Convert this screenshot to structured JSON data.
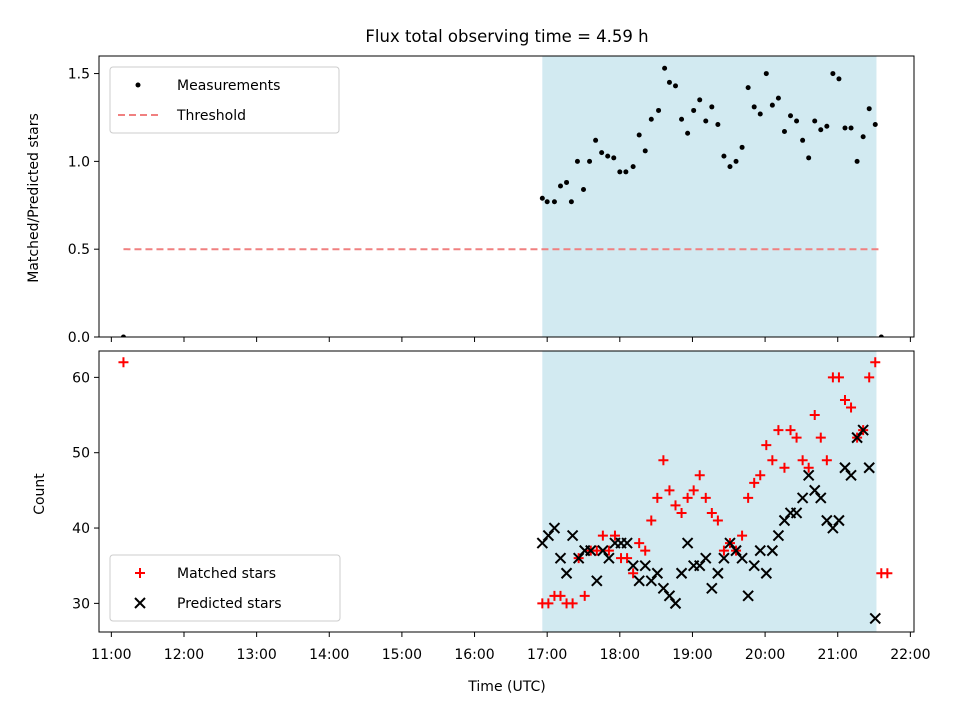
{
  "chart_data": [
    {
      "type": "scatter",
      "title": "Flux total observing time = 4.59 h",
      "xlabel": "",
      "ylabel": "Matched/Predicted stars",
      "ylim": [
        0,
        1.6
      ],
      "yticks": [
        0.0,
        0.5,
        1.0,
        1.5
      ],
      "ytick_labels": [
        "0.0",
        "0.5",
        "1.0",
        "1.5"
      ],
      "xlim_hours": [
        10.83,
        22.05
      ],
      "legend_position": "upper-left",
      "shaded_interval": {
        "start": "16:56",
        "end": "21:32",
        "color": "#add8e6"
      },
      "series": [
        {
          "name": "Measurements",
          "marker": "dot",
          "color": "#000000",
          "points": [
            [
              "11:10",
              0.0
            ],
            [
              "16:56",
              0.79
            ],
            [
              "17:00",
              0.77
            ],
            [
              "17:06",
              0.77
            ],
            [
              "17:11",
              0.86
            ],
            [
              "17:16",
              0.88
            ],
            [
              "17:20",
              0.77
            ],
            [
              "17:25",
              1.0
            ],
            [
              "17:30",
              0.84
            ],
            [
              "17:35",
              1.0
            ],
            [
              "17:40",
              1.12
            ],
            [
              "17:45",
              1.05
            ],
            [
              "17:50",
              1.03
            ],
            [
              "17:55",
              1.02
            ],
            [
              "18:00",
              0.94
            ],
            [
              "18:05",
              0.94
            ],
            [
              "18:11",
              0.97
            ],
            [
              "18:16",
              1.15
            ],
            [
              "18:21",
              1.06
            ],
            [
              "18:26",
              1.24
            ],
            [
              "18:32",
              1.29
            ],
            [
              "18:37",
              1.53
            ],
            [
              "18:41",
              1.45
            ],
            [
              "18:46",
              1.43
            ],
            [
              "18:51",
              1.24
            ],
            [
              "18:56",
              1.16
            ],
            [
              "19:01",
              1.29
            ],
            [
              "19:06",
              1.35
            ],
            [
              "19:11",
              1.23
            ],
            [
              "19:16",
              1.31
            ],
            [
              "19:21",
              1.21
            ],
            [
              "19:26",
              1.03
            ],
            [
              "19:31",
              0.97
            ],
            [
              "19:36",
              1.0
            ],
            [
              "19:41",
              1.08
            ],
            [
              "19:46",
              1.42
            ],
            [
              "19:51",
              1.31
            ],
            [
              "19:56",
              1.27
            ],
            [
              "20:01",
              1.5
            ],
            [
              "20:06",
              1.32
            ],
            [
              "20:11",
              1.36
            ],
            [
              "20:16",
              1.17
            ],
            [
              "20:21",
              1.26
            ],
            [
              "20:26",
              1.23
            ],
            [
              "20:31",
              1.12
            ],
            [
              "20:36",
              1.02
            ],
            [
              "20:41",
              1.23
            ],
            [
              "20:46",
              1.18
            ],
            [
              "20:51",
              1.2
            ],
            [
              "20:56",
              1.5
            ],
            [
              "21:01",
              1.47
            ],
            [
              "21:06",
              1.19
            ],
            [
              "21:11",
              1.19
            ],
            [
              "21:16",
              1.0
            ],
            [
              "21:21",
              1.14
            ],
            [
              "21:26",
              1.3
            ],
            [
              "21:31",
              1.21
            ],
            [
              "21:36",
              0.0
            ]
          ]
        },
        {
          "name": "Threshold",
          "style": "dashed",
          "color": "#f08080",
          "x": [
            "11:10",
            "21:36"
          ],
          "y": [
            0.5,
            0.5
          ]
        }
      ]
    },
    {
      "type": "scatter",
      "title": "",
      "xlabel": "Time (UTC)",
      "ylabel": "Count",
      "ylim": [
        26.2,
        63.5
      ],
      "yticks": [
        30,
        40,
        50,
        60
      ],
      "ytick_labels": [
        "30",
        "40",
        "50",
        "60"
      ],
      "x_tick_labels": [
        "11:00",
        "12:00",
        "13:00",
        "14:00",
        "15:00",
        "16:00",
        "17:00",
        "18:00",
        "19:00",
        "20:00",
        "21:00",
        "22:00"
      ],
      "xlim_hours": [
        10.83,
        22.05
      ],
      "legend_position": "lower-left",
      "shaded_interval": {
        "start": "16:56",
        "end": "21:32",
        "color": "#add8e6"
      },
      "series": [
        {
          "name": "Matched stars",
          "marker": "plus",
          "color": "#ff0000",
          "points": [
            [
              "11:10",
              62
            ],
            [
              "16:56",
              30
            ],
            [
              "17:01",
              30
            ],
            [
              "17:06",
              31
            ],
            [
              "17:11",
              31
            ],
            [
              "17:16",
              30
            ],
            [
              "17:21",
              30
            ],
            [
              "17:26",
              36
            ],
            [
              "17:31",
              31
            ],
            [
              "17:36",
              37
            ],
            [
              "17:41",
              37
            ],
            [
              "17:46",
              39
            ],
            [
              "17:51",
              37
            ],
            [
              "17:56",
              39
            ],
            [
              "18:01",
              36
            ],
            [
              "18:06",
              36
            ],
            [
              "18:11",
              34
            ],
            [
              "18:16",
              38
            ],
            [
              "18:21",
              37
            ],
            [
              "18:26",
              41
            ],
            [
              "18:31",
              44
            ],
            [
              "18:36",
              49
            ],
            [
              "18:41",
              45
            ],
            [
              "18:46",
              43
            ],
            [
              "18:51",
              42
            ],
            [
              "18:56",
              44
            ],
            [
              "19:01",
              45
            ],
            [
              "19:06",
              47
            ],
            [
              "19:11",
              44
            ],
            [
              "19:16",
              42
            ],
            [
              "19:21",
              41
            ],
            [
              "19:26",
              37
            ],
            [
              "19:31",
              38
            ],
            [
              "19:36",
              37
            ],
            [
              "19:41",
              39
            ],
            [
              "19:46",
              44
            ],
            [
              "19:51",
              46
            ],
            [
              "19:56",
              47
            ],
            [
              "20:01",
              51
            ],
            [
              "20:06",
              49
            ],
            [
              "20:11",
              53
            ],
            [
              "20:16",
              48
            ],
            [
              "20:21",
              53
            ],
            [
              "20:26",
              52
            ],
            [
              "20:31",
              49
            ],
            [
              "20:36",
              48
            ],
            [
              "20:41",
              55
            ],
            [
              "20:46",
              52
            ],
            [
              "20:51",
              49
            ],
            [
              "20:56",
              60
            ],
            [
              "21:01",
              60
            ],
            [
              "21:06",
              57
            ],
            [
              "21:11",
              56
            ],
            [
              "21:16",
              52
            ],
            [
              "21:21",
              53
            ],
            [
              "21:26",
              60
            ],
            [
              "21:31",
              62
            ],
            [
              "21:36",
              34
            ],
            [
              "21:41",
              34
            ]
          ]
        },
        {
          "name": "Predicted stars",
          "marker": "x",
          "color": "#000000",
          "points": [
            [
              "16:56",
              38
            ],
            [
              "17:01",
              39
            ],
            [
              "17:06",
              40
            ],
            [
              "17:11",
              36
            ],
            [
              "17:16",
              34
            ],
            [
              "17:21",
              39
            ],
            [
              "17:26",
              36
            ],
            [
              "17:31",
              37
            ],
            [
              "17:36",
              37
            ],
            [
              "17:41",
              33
            ],
            [
              "17:46",
              37
            ],
            [
              "17:51",
              36
            ],
            [
              "17:56",
              38
            ],
            [
              "18:01",
              38
            ],
            [
              "18:06",
              38
            ],
            [
              "18:11",
              35
            ],
            [
              "18:16",
              33
            ],
            [
              "18:21",
              35
            ],
            [
              "18:26",
              33
            ],
            [
              "18:31",
              34
            ],
            [
              "18:36",
              32
            ],
            [
              "18:41",
              31
            ],
            [
              "18:46",
              30
            ],
            [
              "18:51",
              34
            ],
            [
              "18:56",
              38
            ],
            [
              "19:01",
              35
            ],
            [
              "19:06",
              35
            ],
            [
              "19:11",
              36
            ],
            [
              "19:16",
              32
            ],
            [
              "19:21",
              34
            ],
            [
              "19:26",
              36
            ],
            [
              "19:31",
              38
            ],
            [
              "19:36",
              37
            ],
            [
              "19:41",
              36
            ],
            [
              "19:46",
              31
            ],
            [
              "19:51",
              35
            ],
            [
              "19:56",
              37
            ],
            [
              "20:01",
              34
            ],
            [
              "20:06",
              37
            ],
            [
              "20:11",
              39
            ],
            [
              "20:16",
              41
            ],
            [
              "20:21",
              42
            ],
            [
              "20:26",
              42
            ],
            [
              "20:31",
              44
            ],
            [
              "20:36",
              47
            ],
            [
              "20:41",
              45
            ],
            [
              "20:46",
              44
            ],
            [
              "20:51",
              41
            ],
            [
              "20:56",
              40
            ],
            [
              "21:01",
              41
            ],
            [
              "21:06",
              48
            ],
            [
              "21:11",
              47
            ],
            [
              "21:16",
              52
            ],
            [
              "21:21",
              53
            ],
            [
              "21:26",
              48
            ],
            [
              "21:31",
              28
            ]
          ]
        }
      ]
    }
  ]
}
